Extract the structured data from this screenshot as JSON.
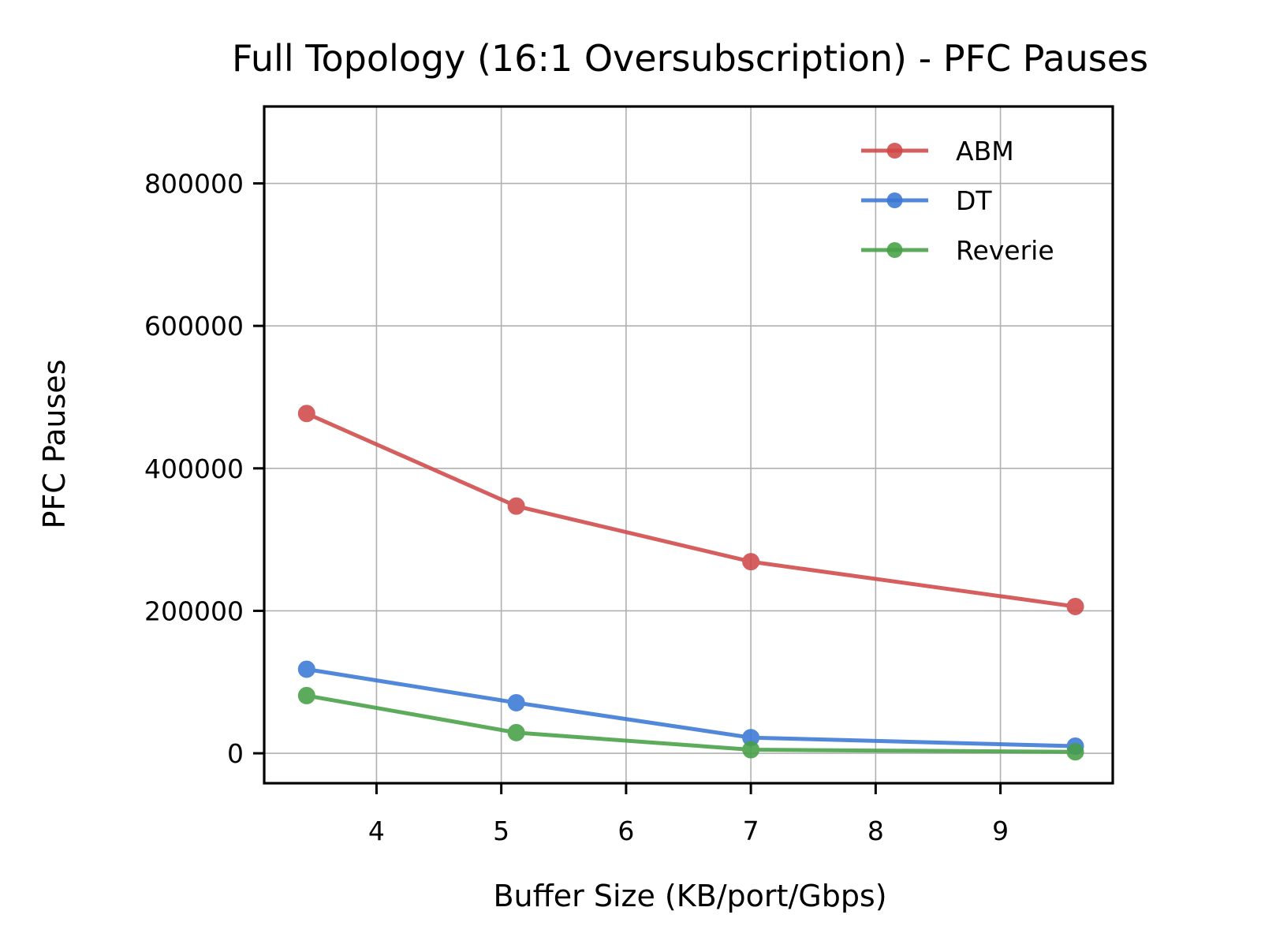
{
  "chart_data": {
    "type": "line",
    "title": "Full Topology (16:1 Oversubscription) - PFC Pauses",
    "xlabel": "Buffer Size (KB/port/Gbps)",
    "ylabel": "PFC Pauses",
    "xlim": [
      3.1,
      9.9
    ],
    "ylim": [
      -42000,
      908000
    ],
    "x_ticks": [
      4,
      5,
      6,
      7,
      8,
      9
    ],
    "y_ticks": [
      0,
      200000,
      400000,
      600000,
      800000
    ],
    "grid": true,
    "legend_position": "top-right",
    "x": [
      3.44,
      5.12,
      7.0,
      9.6
    ],
    "series": [
      {
        "name": "ABM",
        "color": "#d04848",
        "values": [
          477000,
          347000,
          269000,
          206000
        ]
      },
      {
        "name": "DT",
        "color": "#3a78d4",
        "values": [
          118000,
          71000,
          22000,
          10000
        ]
      },
      {
        "name": "Reverie",
        "color": "#46a046",
        "values": [
          81000,
          29000,
          5000,
          2000
        ]
      }
    ]
  }
}
